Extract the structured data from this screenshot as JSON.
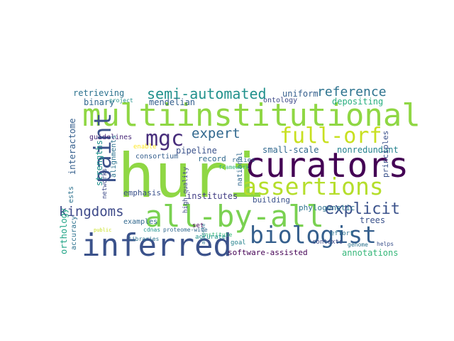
{
  "cloud": {
    "words": [
      {
        "text": "huri",
        "color": "#8fd744"
      },
      {
        "text": "multiinstitutional",
        "color": "#8fd744"
      },
      {
        "text": "curators",
        "color": "#440154"
      },
      {
        "text": "inferred",
        "color": "#3b528b"
      },
      {
        "text": "all-by-all",
        "color": "#7ad151"
      },
      {
        "text": "assertions",
        "color": "#b5de2b"
      },
      {
        "text": "biologist",
        "color": "#355f8d"
      },
      {
        "text": "full-orf",
        "color": "#c8e020"
      },
      {
        "text": "paint",
        "color": "#3b528b"
      },
      {
        "text": "mgc",
        "color": "#472d7b"
      },
      {
        "text": "semi-automated",
        "color": "#21918c"
      },
      {
        "text": "reference",
        "color": "#2c728e"
      },
      {
        "text": "expert",
        "color": "#31688e"
      },
      {
        "text": "kingdoms",
        "color": "#3e4a89"
      },
      {
        "text": "explicit",
        "color": "#3b528b"
      },
      {
        "text": "retrieving",
        "color": "#2c728e"
      },
      {
        "text": "uniform",
        "color": "#355f8d"
      },
      {
        "text": "depositing",
        "color": "#28ae80"
      },
      {
        "text": "binary",
        "color": "#31688e"
      },
      {
        "text": "mendelian",
        "color": "#355f8d"
      },
      {
        "text": "ontology",
        "color": "#3e4a89"
      },
      {
        "text": "guidelines",
        "color": "#482878"
      },
      {
        "text": "small-scale",
        "color": "#31688e"
      },
      {
        "text": "nonredundant",
        "color": "#26828e"
      },
      {
        "text": "pipeline",
        "color": "#3b528b"
      },
      {
        "text": "consortium",
        "color": "#355f8d"
      },
      {
        "text": "record",
        "color": "#31688e"
      },
      {
        "text": "institutes",
        "color": "#433e85"
      },
      {
        "text": "building",
        "color": "#3b528b"
      },
      {
        "text": "phylogenetic",
        "color": "#2c728e"
      },
      {
        "text": "emphasis",
        "color": "#3b528b"
      },
      {
        "text": "trees",
        "color": "#3b528b"
      },
      {
        "text": "annotations",
        "color": "#35b779"
      },
      {
        "text": "software-assisted",
        "color": "#440154"
      },
      {
        "text": "proteome-wide",
        "color": "#31688e"
      },
      {
        "text": "examples",
        "color": "#31688e"
      },
      {
        "text": "goal",
        "color": "#26828e"
      },
      {
        "text": "strengths",
        "color": "#21918c"
      },
      {
        "text": "alignments",
        "color": "#2c728e"
      },
      {
        "text": "networks",
        "color": "#3e4a89"
      },
      {
        "text": "interactome",
        "color": "#355f8d"
      },
      {
        "text": "ests",
        "color": "#2c728e"
      },
      {
        "text": "orthology",
        "color": "#20a486"
      },
      {
        "text": "accuracy",
        "color": "#2c728e"
      },
      {
        "text": "principles",
        "color": "#3b528b"
      },
      {
        "text": "national",
        "color": "#31688e"
      },
      {
        "text": "framework",
        "color": "#35b779"
      },
      {
        "text": "relies",
        "color": "#31688e"
      },
      {
        "text": "high-quality",
        "color": "#3e4a89"
      },
      {
        "text": "libraries",
        "color": "#2c728e"
      },
      {
        "text": "institute",
        "color": "#35b779"
      },
      {
        "text": "enable",
        "color": "#fde725"
      },
      {
        "text": "set",
        "color": "#440154"
      },
      {
        "text": "accurate",
        "color": "#21918c"
      },
      {
        "text": "contexts",
        "color": "#3e4a89"
      },
      {
        "text": "effort",
        "color": "#2c728e"
      },
      {
        "text": "genome",
        "color": "#2c728e"
      },
      {
        "text": "helps",
        "color": "#3b528b"
      },
      {
        "text": "cdnas",
        "color": "#21918c"
      },
      {
        "text": "public",
        "color": "#c8e020"
      },
      {
        "text": "article",
        "color": "#2c728e"
      },
      {
        "text": "project",
        "color": "#21918c"
      }
    ]
  }
}
